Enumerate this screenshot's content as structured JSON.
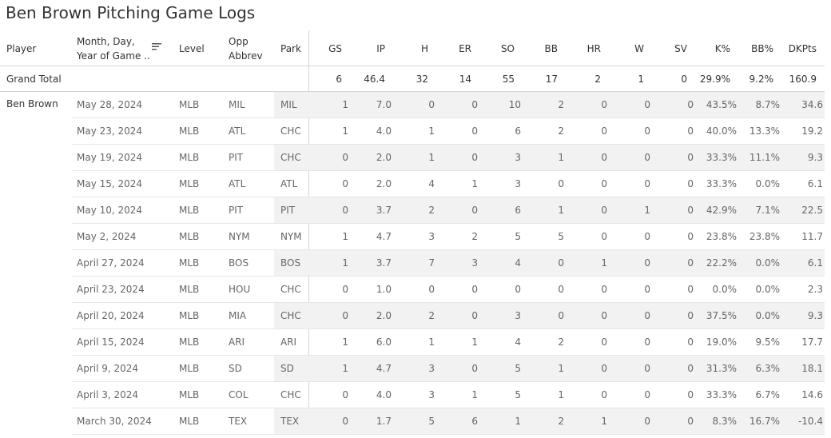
{
  "title": "Ben Brown Pitching Game Logs",
  "headers": {
    "player": "Player",
    "date_line1": "Month, Day,",
    "date_line2": "Year of Game ..",
    "level": "Level",
    "opp_line1": "Opp",
    "opp_line2": "Abbrev",
    "park": "Park",
    "stats": [
      "GS",
      "IP",
      "H",
      "ER",
      "SO",
      "BB",
      "HR",
      "W",
      "SV",
      "K%",
      "BB%",
      "DKPts"
    ]
  },
  "grand_total": {
    "label": "Grand Total",
    "stats": [
      "6",
      "46.4",
      "32",
      "14",
      "55",
      "17",
      "2",
      "1",
      "0",
      "29.9%",
      "9.2%",
      "160.9"
    ]
  },
  "player_name": "Ben Brown",
  "rows": [
    {
      "date": "May 28, 2024",
      "level": "MLB",
      "opp": "MIL",
      "park": "MIL",
      "stats": [
        "1",
        "7.0",
        "0",
        "0",
        "10",
        "2",
        "0",
        "0",
        "0",
        "43.5%",
        "8.7%",
        "34.6"
      ]
    },
    {
      "date": "May 23, 2024",
      "level": "MLB",
      "opp": "ATL",
      "park": "CHC",
      "stats": [
        "1",
        "4.0",
        "1",
        "0",
        "6",
        "2",
        "0",
        "0",
        "0",
        "40.0%",
        "13.3%",
        "19.2"
      ]
    },
    {
      "date": "May 19, 2024",
      "level": "MLB",
      "opp": "PIT",
      "park": "CHC",
      "stats": [
        "0",
        "2.0",
        "1",
        "0",
        "3",
        "1",
        "0",
        "0",
        "0",
        "33.3%",
        "11.1%",
        "9.3"
      ]
    },
    {
      "date": "May 15, 2024",
      "level": "MLB",
      "opp": "ATL",
      "park": "ATL",
      "stats": [
        "0",
        "2.0",
        "4",
        "1",
        "3",
        "0",
        "0",
        "0",
        "0",
        "33.3%",
        "0.0%",
        "6.1"
      ]
    },
    {
      "date": "May 10, 2024",
      "level": "MLB",
      "opp": "PIT",
      "park": "PIT",
      "stats": [
        "0",
        "3.7",
        "2",
        "0",
        "6",
        "1",
        "0",
        "1",
        "0",
        "42.9%",
        "7.1%",
        "22.5"
      ]
    },
    {
      "date": "May 2, 2024",
      "level": "MLB",
      "opp": "NYM",
      "park": "NYM",
      "stats": [
        "1",
        "4.7",
        "3",
        "2",
        "5",
        "5",
        "0",
        "0",
        "0",
        "23.8%",
        "23.8%",
        "11.7"
      ]
    },
    {
      "date": "April 27, 2024",
      "level": "MLB",
      "opp": "BOS",
      "park": "BOS",
      "stats": [
        "1",
        "3.7",
        "7",
        "3",
        "4",
        "0",
        "1",
        "0",
        "0",
        "22.2%",
        "0.0%",
        "6.1"
      ]
    },
    {
      "date": "April 23, 2024",
      "level": "MLB",
      "opp": "HOU",
      "park": "CHC",
      "stats": [
        "0",
        "1.0",
        "0",
        "0",
        "0",
        "0",
        "0",
        "0",
        "0",
        "0.0%",
        "0.0%",
        "2.3"
      ]
    },
    {
      "date": "April 20, 2024",
      "level": "MLB",
      "opp": "MIA",
      "park": "CHC",
      "stats": [
        "0",
        "2.0",
        "2",
        "0",
        "3",
        "0",
        "0",
        "0",
        "0",
        "37.5%",
        "0.0%",
        "9.3"
      ]
    },
    {
      "date": "April 15, 2024",
      "level": "MLB",
      "opp": "ARI",
      "park": "ARI",
      "stats": [
        "1",
        "6.0",
        "1",
        "1",
        "4",
        "2",
        "0",
        "0",
        "0",
        "19.0%",
        "9.5%",
        "17.7"
      ]
    },
    {
      "date": "April 9, 2024",
      "level": "MLB",
      "opp": "SD",
      "park": "SD",
      "stats": [
        "1",
        "4.7",
        "3",
        "0",
        "5",
        "1",
        "0",
        "0",
        "0",
        "31.3%",
        "6.3%",
        "18.1"
      ]
    },
    {
      "date": "April 3, 2024",
      "level": "MLB",
      "opp": "COL",
      "park": "CHC",
      "stats": [
        "0",
        "4.0",
        "3",
        "1",
        "5",
        "1",
        "0",
        "0",
        "0",
        "33.3%",
        "6.7%",
        "14.6"
      ]
    },
    {
      "date": "March 30, 2024",
      "level": "MLB",
      "opp": "TEX",
      "park": "TEX",
      "stats": [
        "0",
        "1.7",
        "5",
        "6",
        "1",
        "2",
        "1",
        "0",
        "0",
        "8.3%",
        "16.7%",
        "-10.4"
      ]
    }
  ],
  "colors": {
    "band": "#f2f2f2",
    "grid": "#d4d4d4",
    "text_primary": "#333333",
    "text_secondary": "#666666"
  }
}
